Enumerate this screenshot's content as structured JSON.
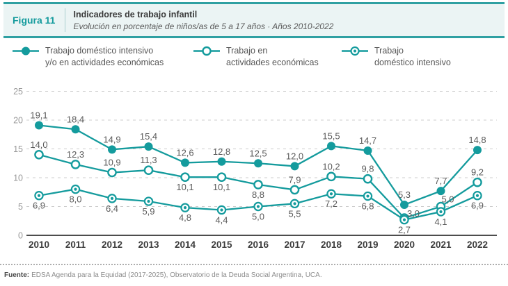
{
  "header": {
    "figure_label": "Figura 11",
    "title": "Indicadores de trabajo infantil",
    "subtitle": "Evolución en porcentaje de niños/as de 5 a 17 años · Años 2010-2022"
  },
  "legend": {
    "items": [
      {
        "marker": "filled-circle",
        "line1": "Trabajo doméstico intensivo",
        "line2": "y/o en actividades económicas"
      },
      {
        "marker": "open-circle",
        "line1": "Trabajo en",
        "line2": "actividades económicas"
      },
      {
        "marker": "bullseye-circle",
        "line1": "Trabajo",
        "line2": "doméstico intensivo"
      }
    ]
  },
  "chart_data": {
    "type": "line",
    "title": "Indicadores de trabajo infantil",
    "subtitle": "Evolución en porcentaje de niños/as de 5 a 17 años · Años 2010-2022",
    "unit": "%",
    "xlabel": "",
    "ylabel": "",
    "categories": [
      "2010",
      "2011",
      "2012",
      "2013",
      "2014",
      "2015",
      "2016",
      "2017",
      "2018",
      "2019",
      "2020",
      "2021",
      "2022"
    ],
    "series": [
      {
        "name": "Trabajo doméstico intensivo y/o en actividades económicas",
        "marker": "filled",
        "values": [
          19.1,
          18.4,
          14.9,
          15.4,
          12.6,
          12.8,
          12.5,
          12.0,
          15.5,
          14.7,
          5.3,
          7.7,
          14.8
        ],
        "label_positions": [
          "above",
          "above",
          "above",
          "above",
          "above",
          "above",
          "above",
          "above",
          "above",
          "above",
          "above",
          "above",
          "above"
        ]
      },
      {
        "name": "Trabajo en actividades económicas",
        "marker": "open",
        "values": [
          14.0,
          12.3,
          10.9,
          11.3,
          10.1,
          10.1,
          8.8,
          7.9,
          10.2,
          9.8,
          3.0,
          5.0,
          9.2
        ],
        "label_positions": [
          "above",
          "above",
          "above",
          "above",
          "below",
          "below",
          "below",
          "above",
          "above",
          "above",
          "above",
          "above",
          "above"
        ]
      },
      {
        "name": "Trabajo doméstico intensivo",
        "marker": "bullseye",
        "values": [
          6.9,
          8.0,
          6.4,
          5.9,
          4.8,
          4.4,
          5.0,
          5.5,
          7.2,
          6.8,
          2.7,
          4.1,
          6.9
        ],
        "label_positions": [
          "below",
          "below",
          "below",
          "below",
          "below",
          "below",
          "below",
          "below",
          "below",
          "below",
          "below",
          "below",
          "below"
        ]
      }
    ],
    "y_ticks": [
      0,
      5,
      10,
      15,
      20,
      25
    ],
    "ylim": [
      0,
      25
    ],
    "grid": "dashed-horizontal",
    "legend_position": "top",
    "decimal_separator": ","
  },
  "footer": {
    "source_label": "Fuente:",
    "source_text": "EDSA Agenda para la Equidad (2017-2025), Observatorio de la Deuda Social Argentina, UCA."
  },
  "colors": {
    "accent_teal": "#149B9D",
    "header_bg": "#EBF4F4",
    "header_border": "#2FA0A2",
    "grid_line": "#CCCCCC",
    "axis_line": "#4D4D4D",
    "data_label": "#5A5A5A",
    "tick_label": "#999999",
    "year_label": "#3C3C3C",
    "legend_text": "#555555",
    "source_label_color": "#4A4A4A",
    "source_text_color": "#8C8C8C"
  }
}
